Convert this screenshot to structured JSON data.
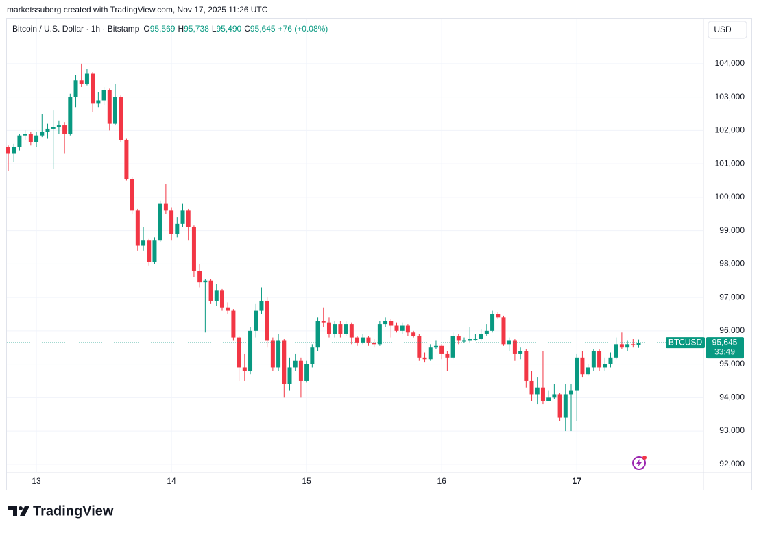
{
  "attribution": "marketssuberg created with TradingView.com, Nov 17, 2025 11:26 UTC",
  "chart_data": {
    "type": "candlestick",
    "symbol": "Bitcoin / U.S. Dollar · 1h · Bitstamp",
    "ohlc_legend": [
      {
        "label": "O",
        "value": "95,569"
      },
      {
        "label": "H",
        "value": "95,738"
      },
      {
        "label": "L",
        "value": "95,490"
      },
      {
        "label": "C",
        "value": "95,645"
      }
    ],
    "change": "+76 (+0.08%)",
    "currency": "USD",
    "categories": [
      null,
      null,
      null,
      null,
      null,
      "13",
      null,
      null,
      null,
      null,
      null,
      null,
      null,
      null,
      null,
      null,
      null,
      null,
      null,
      null,
      null,
      null,
      null,
      null,
      null,
      null,
      null,
      null,
      null,
      "14",
      null,
      null,
      null,
      null,
      null,
      null,
      null,
      null,
      null,
      null,
      null,
      null,
      null,
      null,
      null,
      null,
      null,
      null,
      null,
      null,
      null,
      null,
      null,
      "15",
      null,
      null,
      null,
      null,
      null,
      null,
      null,
      null,
      null,
      null,
      null,
      null,
      null,
      null,
      null,
      null,
      null,
      null,
      null,
      null,
      null,
      null,
      null,
      "16",
      null,
      null,
      null,
      null,
      null,
      null,
      null,
      null,
      null,
      null,
      null,
      null,
      null,
      null,
      null,
      null,
      null,
      null,
      null,
      null,
      null,
      null,
      null,
      "17",
      null,
      null,
      null,
      null,
      null,
      null,
      null,
      null,
      null,
      null,
      null
    ],
    "open": [
      101500,
      101300,
      101500,
      101850,
      101900,
      101650,
      101850,
      101950,
      102050,
      102100,
      102150,
      101900,
      103000,
      103500,
      103400,
      103700,
      102800,
      102900,
      103200,
      102200,
      103000,
      101700,
      100550,
      99600,
      98550,
      98700,
      98050,
      98700,
      99800,
      99600,
      98900,
      99200,
      99600,
      99100,
      97800,
      97450,
      97500,
      96900,
      97200,
      96700,
      96600,
      95800,
      94900,
      94800,
      96000,
      96600,
      96900,
      95700,
      94900,
      95700,
      94400,
      94900,
      95100,
      94500,
      95000,
      95500,
      96300,
      96250,
      95900,
      96200,
      95900,
      96200,
      95800,
      95650,
      95800,
      95650,
      95600,
      96200,
      96300,
      96150,
      96000,
      96150,
      95950,
      95850,
      95200,
      95150,
      95500,
      95550,
      95300,
      95200,
      95850,
      95700,
      95700,
      95750,
      95750,
      95900,
      96000,
      96500,
      96400,
      95600,
      95700,
      95300,
      95400,
      94500,
      94100,
      94300,
      93900,
      94000,
      94100,
      93400,
      94100,
      94200,
      95200,
      94700,
      94900,
      95400,
      94900,
      95000,
      95200,
      95600,
      95500,
      95600,
      95569
    ],
    "high": [
      101550,
      101600,
      101900,
      102000,
      101950,
      101950,
      102500,
      102200,
      102600,
      102300,
      102250,
      103100,
      103650,
      104000,
      103850,
      103750,
      103150,
      103300,
      103250,
      103400,
      103050,
      101750,
      100600,
      99650,
      99100,
      98750,
      98800,
      99900,
      100400,
      99700,
      99400,
      99800,
      99650,
      99150,
      98000,
      97550,
      97550,
      97400,
      97250,
      96850,
      96650,
      95850,
      95300,
      96100,
      96800,
      97300,
      97000,
      95800,
      95900,
      95750,
      95200,
      95300,
      95200,
      95100,
      95600,
      96400,
      96700,
      96400,
      96300,
      96300,
      96300,
      96250,
      95850,
      95900,
      95850,
      95750,
      96300,
      96400,
      96350,
      96250,
      96250,
      96200,
      96000,
      95900,
      95350,
      95600,
      95700,
      95600,
      95400,
      95950,
      95900,
      95800,
      96100,
      95900,
      96050,
      96200,
      96600,
      96550,
      96450,
      95800,
      95750,
      95500,
      95450,
      94800,
      94600,
      95400,
      94200,
      94400,
      94150,
      94400,
      94400,
      95300,
      95400,
      95000,
      95450,
      95450,
      95200,
      95350,
      95800,
      95950,
      95700,
      95750,
      95738
    ],
    "low": [
      100780,
      101050,
      101400,
      101700,
      101550,
      101500,
      101800,
      101750,
      100850,
      101900,
      101300,
      101850,
      102700,
      103300,
      103350,
      102550,
      102700,
      102750,
      102000,
      102150,
      101650,
      100500,
      99500,
      98400,
      98400,
      97950,
      98000,
      98650,
      99500,
      98700,
      98800,
      99100,
      98700,
      97600,
      97300,
      95950,
      96800,
      96750,
      96600,
      96500,
      95700,
      94500,
      94500,
      94700,
      95800,
      96500,
      95500,
      94800,
      94800,
      94000,
      94200,
      94800,
      94000,
      94450,
      94900,
      95400,
      96100,
      95800,
      95800,
      95800,
      95850,
      95600,
      95550,
      95600,
      95550,
      95500,
      95550,
      96100,
      95800,
      95950,
      95900,
      95850,
      95800,
      95100,
      95050,
      95100,
      95450,
      95150,
      94800,
      95150,
      95600,
      95650,
      95650,
      95700,
      95700,
      95850,
      95950,
      96350,
      95550,
      95400,
      95100,
      95150,
      94300,
      93900,
      93800,
      93800,
      93900,
      93950,
      93300,
      93000,
      93000,
      93300,
      94600,
      94650,
      94800,
      94800,
      94800,
      94900,
      95150,
      95450,
      95400,
      95500,
      95490
    ],
    "close": [
      101300,
      101500,
      101850,
      101900,
      101650,
      101850,
      101950,
      102050,
      102100,
      102150,
      101900,
      103000,
      103500,
      103400,
      103700,
      102800,
      102900,
      103200,
      102200,
      103000,
      101700,
      100550,
      99600,
      98550,
      98700,
      98050,
      98700,
      99800,
      99600,
      98900,
      99200,
      99600,
      99100,
      97800,
      97450,
      97500,
      96900,
      97200,
      96700,
      96600,
      95800,
      94900,
      94800,
      96000,
      96600,
      96900,
      95700,
      94900,
      95700,
      94400,
      94900,
      95100,
      94500,
      95000,
      95500,
      96300,
      96250,
      95900,
      96200,
      95900,
      96200,
      95800,
      95650,
      95800,
      95650,
      95600,
      96200,
      96300,
      96150,
      96000,
      96150,
      95950,
      95850,
      95200,
      95150,
      95500,
      95550,
      95300,
      95200,
      95850,
      95700,
      95700,
      95750,
      95750,
      95900,
      96000,
      96500,
      96400,
      95600,
      95700,
      95300,
      95400,
      94500,
      94100,
      94300,
      93900,
      94000,
      94100,
      93400,
      94100,
      94200,
      95200,
      94700,
      94900,
      95400,
      94900,
      95000,
      95200,
      95600,
      95500,
      95600,
      95569,
      95645
    ],
    "up_color": "#089981",
    "down_color": "#f23645",
    "ylim": [
      91750,
      105290
    ],
    "yticks": [
      {
        "value": 92000,
        "label": "92,000"
      },
      {
        "value": 93000,
        "label": "93,000"
      },
      {
        "value": 94000,
        "label": "94,000"
      },
      {
        "value": 95000,
        "label": "95,000"
      },
      {
        "value": 96000,
        "label": "96,000"
      },
      {
        "value": 97000,
        "label": "97,000"
      },
      {
        "value": 98000,
        "label": "98,000"
      },
      {
        "value": 99000,
        "label": "99,000"
      },
      {
        "value": 100000,
        "label": "100,000"
      },
      {
        "value": 101000,
        "label": "101,000"
      },
      {
        "value": 102000,
        "label": "102,000"
      },
      {
        "value": 103000,
        "label": "103,000"
      },
      {
        "value": 104000,
        "label": "104,000"
      }
    ],
    "grid": true,
    "last_price": {
      "symbol": "BTCUSD",
      "value": 95645,
      "label": "95,645",
      "countdown": "33:49"
    }
  },
  "logo": "TradingView"
}
